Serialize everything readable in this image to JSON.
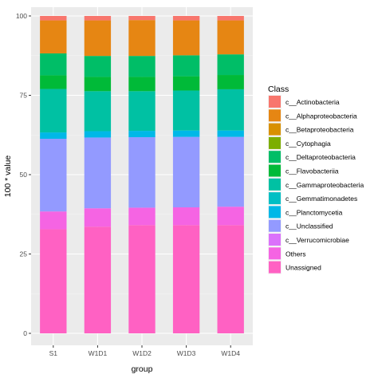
{
  "chart_data": {
    "type": "bar",
    "stacked": true,
    "xlabel": "group",
    "ylabel": "100 * value",
    "ylim": [
      0,
      100
    ],
    "yticks": [
      0,
      25,
      50,
      75,
      100
    ],
    "grid": true,
    "legend_position": "right",
    "legend_title": "Class",
    "categories": [
      "S1",
      "W1D1",
      "W1D2",
      "W1D3",
      "W1D4"
    ],
    "series": [
      {
        "name": "Unassigned",
        "color": "#FF61C3",
        "values": [
          32.8,
          33.6,
          34.1,
          34.1,
          34.1
        ]
      },
      {
        "name": "Others",
        "color": "#F564E3",
        "values": [
          5.6,
          5.8,
          5.5,
          5.6,
          5.8
        ]
      },
      {
        "name": "c__Verrucomicrobiae",
        "color": "#DB72FB",
        "values": [
          0,
          0,
          0,
          0,
          0
        ]
      },
      {
        "name": "c__Unclassified",
        "color": "#939AFF",
        "values": [
          22.9,
          22.3,
          22.2,
          22.2,
          22.0
        ]
      },
      {
        "name": "c__Planctomycetia",
        "color": "#00B8E7",
        "values": [
          2.0,
          2.0,
          2.0,
          2.0,
          2.0
        ]
      },
      {
        "name": "c__Gemmatimonadetes",
        "color": "#00BFC4",
        "values": [
          0,
          0,
          0,
          0,
          0
        ]
      },
      {
        "name": "c__Gammaproteobacteria",
        "color": "#00C1A3",
        "values": [
          13.7,
          12.6,
          12.5,
          12.6,
          13.0
        ]
      },
      {
        "name": "c__Flavobacteriia",
        "color": "#00BA38",
        "values": [
          4.3,
          4.5,
          4.5,
          4.5,
          4.5
        ]
      },
      {
        "name": "c__Deltaproteobacteria",
        "color": "#00BE67",
        "values": [
          6.9,
          6.6,
          6.6,
          6.6,
          6.5
        ]
      },
      {
        "name": "c__Cytophagia",
        "color": "#7CAE00",
        "values": [
          0,
          0,
          0,
          0,
          0
        ]
      },
      {
        "name": "c__Betaproteobacteria",
        "color": "#D89000",
        "values": [
          0,
          0,
          0,
          0,
          0
        ]
      },
      {
        "name": "c__Alphaproteobacteria",
        "color": "#E68613",
        "values": [
          10.4,
          11.2,
          11.3,
          11.0,
          10.7
        ]
      },
      {
        "name": "c__Actinobacteria",
        "color": "#F8766D",
        "values": [
          1.4,
          1.4,
          1.3,
          1.4,
          1.4
        ]
      }
    ],
    "legend_order": [
      "c__Actinobacteria",
      "c__Alphaproteobacteria",
      "c__Betaproteobacteria",
      "c__Cytophagia",
      "c__Deltaproteobacteria",
      "c__Flavobacteriia",
      "c__Gammaproteobacteria",
      "c__Gemmatimonadetes",
      "c__Planctomycetia",
      "c__Unclassified",
      "c__Verrucomicrobiae",
      "Others",
      "Unassigned"
    ]
  },
  "colors": {
    "panel_background": "#EBEBEB",
    "grid_major": "#FFFFFF",
    "grid_minor": "#F5F5F5"
  }
}
